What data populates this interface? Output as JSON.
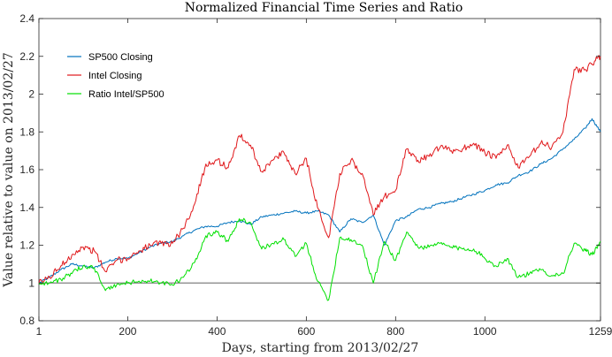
{
  "chart_data": {
    "type": "line",
    "title": "Normalized Financial Time Series and Ratio",
    "xlabel": "Days, starting from 2013/02/27",
    "ylabel": "Value relative to value on 2013/02/27",
    "xlim": [
      1,
      1259
    ],
    "ylim": [
      0.8,
      2.4
    ],
    "xticks": [
      1,
      200,
      400,
      600,
      800,
      1000,
      1259
    ],
    "xtick_labels": [
      "1",
      "200",
      "400",
      "600",
      "800",
      "1000",
      "1259"
    ],
    "yticks": [
      0.8,
      1,
      1.2,
      1.4,
      1.6,
      1.8,
      2,
      2.2,
      2.4
    ],
    "ytick_labels": [
      "0.8",
      "1",
      "1.2",
      "1.4",
      "1.6",
      "1.8",
      "2",
      "2.2",
      "2.4"
    ],
    "grid": false,
    "legend_position": "top-left",
    "reference_line": {
      "y": 1,
      "color": "#808080"
    },
    "x": [
      1,
      25,
      50,
      75,
      100,
      125,
      150,
      175,
      200,
      225,
      250,
      275,
      300,
      325,
      350,
      375,
      400,
      425,
      450,
      475,
      500,
      525,
      550,
      575,
      600,
      625,
      650,
      675,
      700,
      725,
      750,
      775,
      800,
      825,
      850,
      875,
      900,
      925,
      950,
      975,
      1000,
      1025,
      1050,
      1075,
      1100,
      1125,
      1150,
      1175,
      1200,
      1225,
      1240,
      1259
    ],
    "series": [
      {
        "name": "SP500 Closing",
        "color": "#0072BD",
        "values": [
          1.0,
          1.03,
          1.07,
          1.1,
          1.09,
          1.08,
          1.11,
          1.13,
          1.13,
          1.16,
          1.19,
          1.21,
          1.22,
          1.25,
          1.28,
          1.3,
          1.3,
          1.32,
          1.33,
          1.31,
          1.35,
          1.36,
          1.37,
          1.38,
          1.37,
          1.38,
          1.36,
          1.27,
          1.34,
          1.32,
          1.36,
          1.2,
          1.33,
          1.35,
          1.39,
          1.4,
          1.42,
          1.43,
          1.45,
          1.47,
          1.49,
          1.52,
          1.53,
          1.57,
          1.59,
          1.63,
          1.66,
          1.71,
          1.76,
          1.82,
          1.87,
          1.8
        ]
      },
      {
        "name": "Intel Closing",
        "color": "#E0171A",
        "values": [
          1.0,
          1.03,
          1.09,
          1.15,
          1.19,
          1.17,
          1.06,
          1.12,
          1.13,
          1.17,
          1.2,
          1.21,
          1.21,
          1.29,
          1.42,
          1.63,
          1.65,
          1.61,
          1.78,
          1.73,
          1.59,
          1.65,
          1.69,
          1.58,
          1.66,
          1.4,
          1.24,
          1.58,
          1.65,
          1.58,
          1.36,
          1.46,
          1.49,
          1.71,
          1.65,
          1.67,
          1.72,
          1.7,
          1.71,
          1.74,
          1.69,
          1.66,
          1.73,
          1.61,
          1.67,
          1.74,
          1.72,
          1.8,
          2.13,
          2.13,
          2.16,
          2.2
        ]
      },
      {
        "name": "Ratio Intel/SP500",
        "color": "#00E000",
        "values": [
          1.0,
          1.0,
          1.02,
          1.05,
          1.09,
          1.08,
          0.96,
          0.99,
          1.0,
          1.01,
          1.01,
          1.0,
          0.99,
          1.03,
          1.11,
          1.25,
          1.27,
          1.22,
          1.34,
          1.32,
          1.18,
          1.21,
          1.23,
          1.14,
          1.21,
          1.01,
          0.91,
          1.24,
          1.23,
          1.2,
          1.0,
          1.22,
          1.12,
          1.27,
          1.19,
          1.19,
          1.21,
          1.19,
          1.18,
          1.18,
          1.13,
          1.09,
          1.13,
          1.03,
          1.05,
          1.07,
          1.04,
          1.05,
          1.21,
          1.17,
          1.15,
          1.22
        ]
      }
    ]
  }
}
